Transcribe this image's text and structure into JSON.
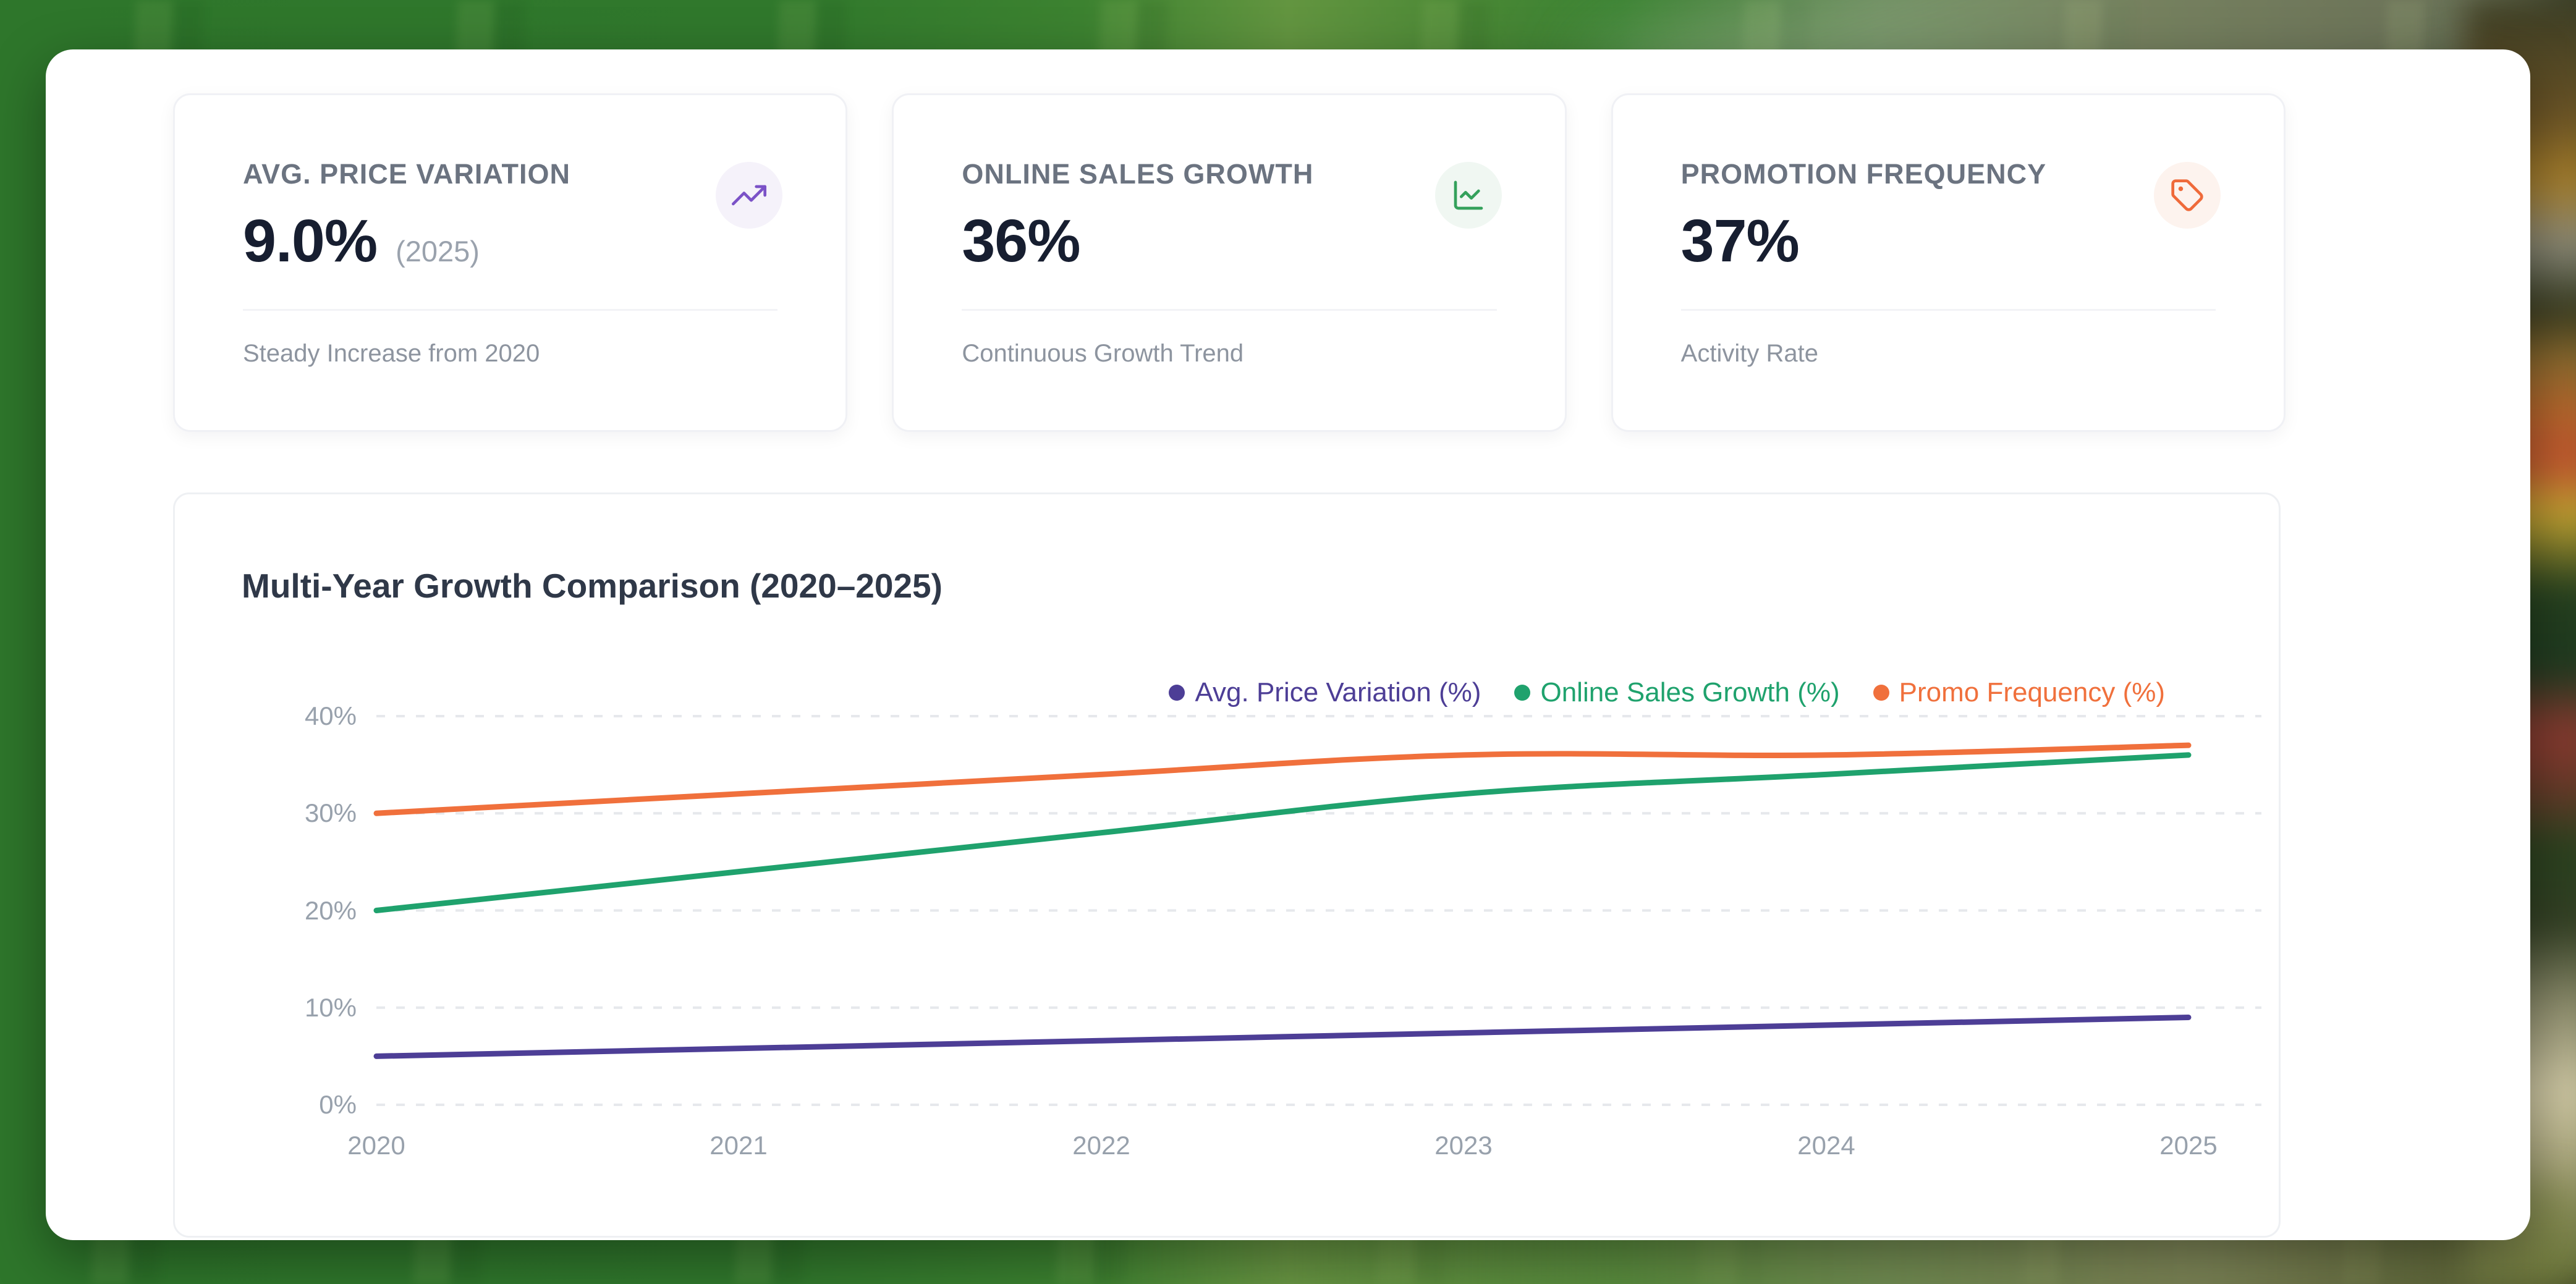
{
  "kpi_cards": [
    {
      "title": "AVG. PRICE VARIATION",
      "value": "9.0%",
      "value_suffix": "(2025)",
      "footnote": "Steady Increase from 2020",
      "icon": "trending-up-icon",
      "accent": "#7b52c7",
      "icon_bg": "#f5f2fa"
    },
    {
      "title": "ONLINE SALES GROWTH",
      "value": "36%",
      "value_suffix": "",
      "footnote": "Continuous Growth Trend",
      "icon": "chart-line-icon",
      "accent": "#34a15b",
      "icon_bg": "#f0f7f2"
    },
    {
      "title": "PROMOTION FREQUENCY",
      "value": "37%",
      "value_suffix": "",
      "footnote": "Activity Rate",
      "icon": "tag-icon",
      "accent": "#ef6a3a",
      "icon_bg": "#fdf3ee"
    }
  ],
  "chart": {
    "title": "Multi-Year Growth Comparison (2020–2025)"
  },
  "chart_data": {
    "type": "line",
    "x": [
      2020,
      2021,
      2022,
      2023,
      2024,
      2025
    ],
    "series": [
      {
        "name": "Avg. Price Variation (%)",
        "color": "#4d3e96",
        "values": [
          5.0,
          5.8,
          6.6,
          7.4,
          8.2,
          9.0
        ]
      },
      {
        "name": "Online Sales Growth (%)",
        "color": "#1fa26d",
        "values": [
          20,
          24,
          28,
          32,
          34,
          36
        ]
      },
      {
        "name": "Promo Frequency (%)",
        "color": "#f0703c",
        "values": [
          30,
          32,
          34,
          36,
          36,
          37
        ]
      }
    ],
    "ylim": [
      0,
      40
    ],
    "yticks": [
      "0%",
      "10%",
      "20%",
      "30%",
      "40%"
    ],
    "grid": "horizontal-dashed",
    "gridline_color": "#e6e8ec",
    "legend_position": "top-right"
  }
}
